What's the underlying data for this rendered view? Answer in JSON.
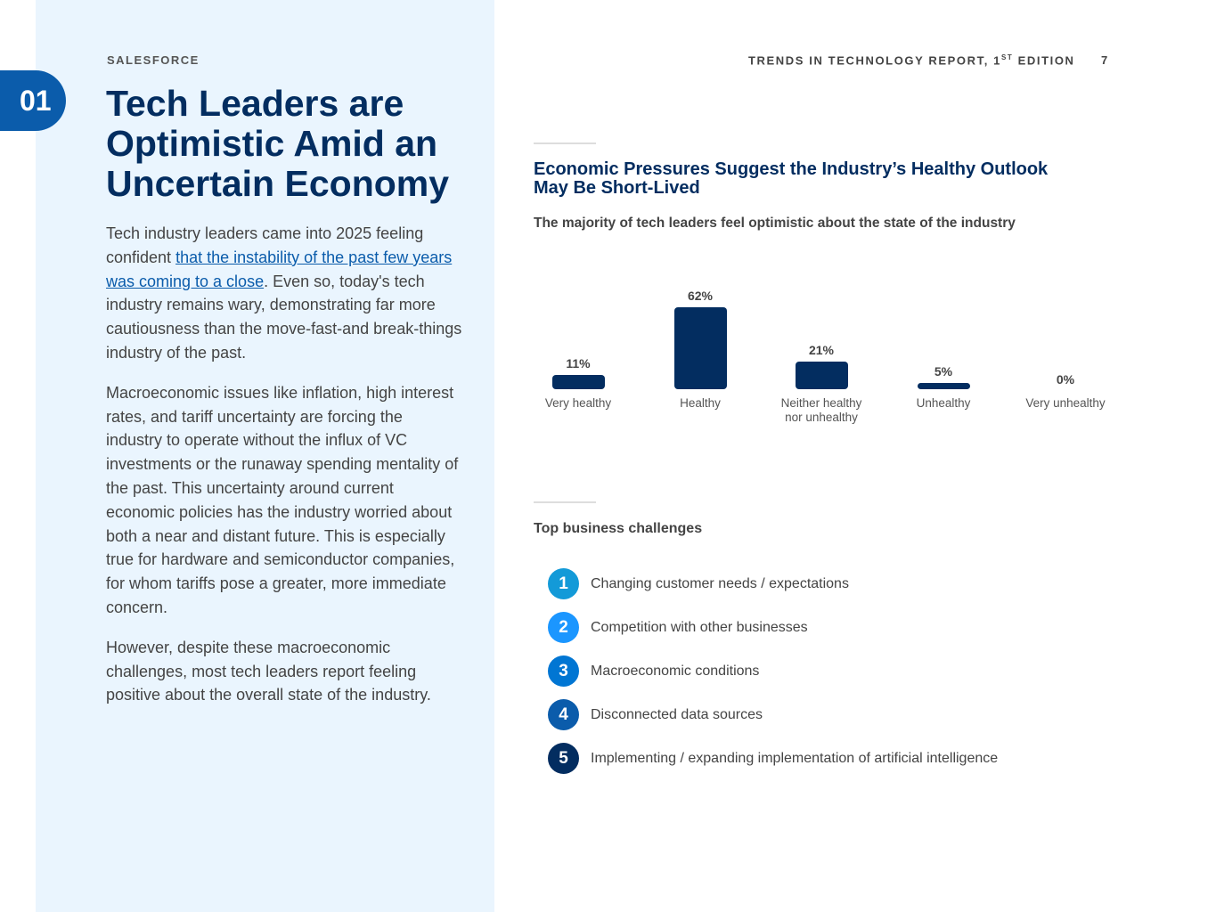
{
  "chapter": "01",
  "brand": "SALESFORCE",
  "title": "Tech Leaders are Optimistic Amid an Uncertain Economy",
  "body": {
    "p1_a": "Tech industry leaders came into 2025 feeling confident ",
    "p1_link": "that the instability of the past few years was coming to a close",
    "p1_b": ". Even so, today's tech industry remains wary, demonstrating far more cautiousness than the move-fast-and break-things industry of the past.",
    "p2": "Macroeconomic issues like inflation, high interest rates, and tariff uncertainty are forcing the industry to operate without the influx of VC investments or the runaway spending mentality of the past. This uncertainty around current economic policies has the industry worried about both a near and distant future. This is especially true for hardware and semiconductor companies, for whom tariffs pose a greater, more immediate concern.",
    "p3": "However, despite these macroeconomic challenges, most tech leaders report feeling positive about the overall state of the industry."
  },
  "header": {
    "report": "TRENDS IN TECHNOLOGY REPORT, 1",
    "sup": "ST",
    "edition": " EDITION",
    "page": "7"
  },
  "section_title": "Economic Pressures Suggest the Industry’s Healthy Outlook May Be Short-Lived",
  "chart_data": {
    "type": "bar",
    "title": "The majority of tech leaders feel optimistic about the state of the industry",
    "categories": [
      "Very healthy",
      "Healthy",
      "Neither healthy nor unhealthy",
      "Unhealthy",
      "Very unhealthy"
    ],
    "values": [
      11,
      62,
      21,
      5,
      0
    ],
    "labels": [
      "11%",
      "62%",
      "21%",
      "5%",
      "0%"
    ],
    "ylim": [
      0,
      62
    ],
    "color": "#032d60"
  },
  "challenges": {
    "title": "Top business challenges",
    "items": [
      {
        "n": "1",
        "text": "Changing customer needs / expectations",
        "color": "#139ad8"
      },
      {
        "n": "2",
        "text": "Competition with other businesses",
        "color": "#1b96ff"
      },
      {
        "n": "3",
        "text": "Macroeconomic conditions",
        "color": "#0176d3"
      },
      {
        "n": "4",
        "text": "Disconnected data sources",
        "color": "#0b5cab"
      },
      {
        "n": "5",
        "text": "Implementing / expanding implementation of artificial intelligence",
        "color": "#032d60"
      }
    ]
  }
}
